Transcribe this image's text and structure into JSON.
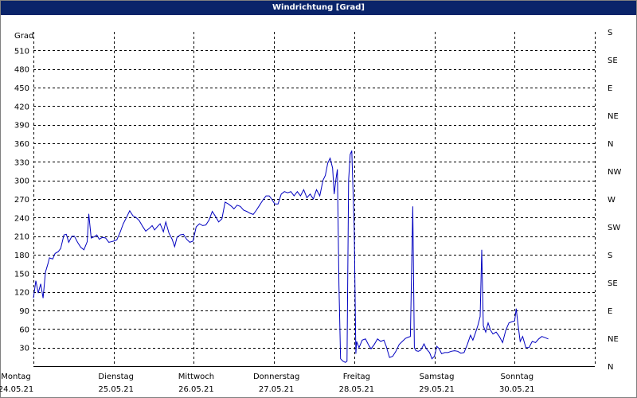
{
  "window": {
    "title": "Windrichtung [Grad]"
  },
  "chart_data": {
    "type": "line",
    "title": "Windrichtung [Grad]",
    "ylabel": "Grad",
    "ylim": [
      0,
      540
    ],
    "yticks": [
      30,
      60,
      90,
      120,
      150,
      180,
      210,
      240,
      270,
      300,
      330,
      360,
      390,
      420,
      450,
      480,
      510
    ],
    "ytick_labels": [
      "30",
      "60",
      "90",
      "120",
      "150",
      "180",
      "210",
      "240",
      "270",
      "300",
      "330",
      "360",
      "390",
      "420",
      "450",
      "480",
      "510"
    ],
    "right_axis_labels": [
      {
        "value": 0,
        "label": "N"
      },
      {
        "value": 45,
        "label": "NE"
      },
      {
        "value": 90,
        "label": "E"
      },
      {
        "value": 135,
        "label": "SE"
      },
      {
        "value": 180,
        "label": "S"
      },
      {
        "value": 225,
        "label": "SW"
      },
      {
        "value": 270,
        "label": "W"
      },
      {
        "value": 315,
        "label": "NW"
      },
      {
        "value": 360,
        "label": "N"
      },
      {
        "value": 405,
        "label": "NE"
      },
      {
        "value": 450,
        "label": "E"
      },
      {
        "value": 495,
        "label": "SE"
      },
      {
        "value": 540,
        "label": "S"
      }
    ],
    "xlim": [
      0,
      7
    ],
    "x_unit": "days since Montag 24.05.21 00:00",
    "x_labels": [
      {
        "day": "Montag",
        "date": "24.05.21"
      },
      {
        "day": "Dienstag",
        "date": "25.05.21"
      },
      {
        "day": "Mittwoch",
        "date": "26.05.21"
      },
      {
        "day": "Donnerstag",
        "date": "27.05.21"
      },
      {
        "day": "Freitag",
        "date": "28.05.21"
      },
      {
        "day": "Samstag",
        "date": "29.05.21"
      },
      {
        "day": "Sonntag",
        "date": "30.05.21"
      }
    ],
    "grid": true,
    "series": [
      {
        "color": "#0000c0",
        "points": [
          [
            0.0,
            110
          ],
          [
            0.03,
            138
          ],
          [
            0.06,
            118
          ],
          [
            0.09,
            133
          ],
          [
            0.12,
            110
          ],
          [
            0.15,
            152
          ],
          [
            0.18,
            165
          ],
          [
            0.2,
            175
          ],
          [
            0.24,
            173
          ],
          [
            0.27,
            182
          ],
          [
            0.31,
            185
          ],
          [
            0.34,
            190
          ],
          [
            0.38,
            212
          ],
          [
            0.41,
            213
          ],
          [
            0.44,
            200
          ],
          [
            0.48,
            210
          ],
          [
            0.51,
            210
          ],
          [
            0.55,
            200
          ],
          [
            0.59,
            192
          ],
          [
            0.63,
            188
          ],
          [
            0.67,
            201
          ],
          [
            0.69,
            246
          ],
          [
            0.72,
            207
          ],
          [
            0.76,
            209
          ],
          [
            0.79,
            212
          ],
          [
            0.82,
            205
          ],
          [
            0.86,
            208
          ],
          [
            0.9,
            207
          ],
          [
            0.94,
            200
          ],
          [
            0.97,
            201
          ],
          [
            1.0,
            202
          ],
          [
            1.04,
            204
          ],
          [
            1.08,
            216
          ],
          [
            1.12,
            230
          ],
          [
            1.16,
            240
          ],
          [
            1.2,
            251
          ],
          [
            1.24,
            243
          ],
          [
            1.28,
            240
          ],
          [
            1.32,
            235
          ],
          [
            1.36,
            226
          ],
          [
            1.4,
            218
          ],
          [
            1.44,
            222
          ],
          [
            1.48,
            227
          ],
          [
            1.51,
            220
          ],
          [
            1.55,
            226
          ],
          [
            1.58,
            230
          ],
          [
            1.62,
            217
          ],
          [
            1.65,
            233
          ],
          [
            1.69,
            215
          ],
          [
            1.73,
            205
          ],
          [
            1.76,
            193
          ],
          [
            1.79,
            208
          ],
          [
            1.83,
            212
          ],
          [
            1.87,
            213
          ],
          [
            1.91,
            205
          ],
          [
            1.95,
            200
          ],
          [
            1.99,
            202
          ],
          [
            2.03,
            225
          ],
          [
            2.07,
            230
          ],
          [
            2.11,
            227
          ],
          [
            2.15,
            228
          ],
          [
            2.19,
            236
          ],
          [
            2.23,
            250
          ],
          [
            2.27,
            242
          ],
          [
            2.31,
            233
          ],
          [
            2.35,
            238
          ],
          [
            2.39,
            265
          ],
          [
            2.43,
            262
          ],
          [
            2.47,
            258
          ],
          [
            2.5,
            254
          ],
          [
            2.54,
            260
          ],
          [
            2.58,
            258
          ],
          [
            2.62,
            252
          ],
          [
            2.66,
            250
          ],
          [
            2.7,
            247
          ],
          [
            2.74,
            245
          ],
          [
            2.78,
            252
          ],
          [
            2.82,
            260
          ],
          [
            2.86,
            268
          ],
          [
            2.9,
            275
          ],
          [
            2.94,
            275
          ],
          [
            2.97,
            270
          ],
          [
            3.01,
            262
          ],
          [
            3.05,
            262
          ],
          [
            3.09,
            278
          ],
          [
            3.13,
            282
          ],
          [
            3.17,
            280
          ],
          [
            3.21,
            282
          ],
          [
            3.25,
            275
          ],
          [
            3.29,
            282
          ],
          [
            3.33,
            275
          ],
          [
            3.37,
            285
          ],
          [
            3.41,
            272
          ],
          [
            3.45,
            278
          ],
          [
            3.49,
            270
          ],
          [
            3.53,
            285
          ],
          [
            3.57,
            275
          ],
          [
            3.61,
            300
          ],
          [
            3.64,
            308
          ],
          [
            3.67,
            328
          ],
          [
            3.7,
            336
          ],
          [
            3.73,
            320
          ],
          [
            3.75,
            278
          ],
          [
            3.77,
            300
          ],
          [
            3.79,
            318
          ],
          [
            3.81,
            130
          ],
          [
            3.83,
            12
          ],
          [
            3.86,
            8
          ],
          [
            3.89,
            6
          ],
          [
            3.91,
            8
          ],
          [
            3.93,
            300
          ],
          [
            3.95,
            342
          ],
          [
            3.97,
            348
          ],
          [
            4.0,
            220
          ],
          [
            4.02,
            20
          ],
          [
            4.03,
            40
          ],
          [
            4.06,
            30
          ],
          [
            4.1,
            42
          ],
          [
            4.14,
            44
          ],
          [
            4.18,
            34
          ],
          [
            4.21,
            28
          ],
          [
            4.25,
            35
          ],
          [
            4.29,
            44
          ],
          [
            4.33,
            40
          ],
          [
            4.37,
            42
          ],
          [
            4.4,
            32
          ],
          [
            4.44,
            14
          ],
          [
            4.48,
            16
          ],
          [
            4.52,
            24
          ],
          [
            4.56,
            35
          ],
          [
            4.6,
            40
          ],
          [
            4.64,
            45
          ],
          [
            4.68,
            47
          ],
          [
            4.7,
            48
          ],
          [
            4.73,
            258
          ],
          [
            4.75,
            30
          ],
          [
            4.77,
            25
          ],
          [
            4.8,
            24
          ],
          [
            4.83,
            26
          ],
          [
            4.87,
            36
          ],
          [
            4.9,
            28
          ],
          [
            4.94,
            22
          ],
          [
            4.97,
            12
          ],
          [
            5.0,
            16
          ],
          [
            5.03,
            32
          ],
          [
            5.06,
            28
          ],
          [
            5.09,
            20
          ],
          [
            5.13,
            22
          ],
          [
            5.17,
            22
          ],
          [
            5.21,
            24
          ],
          [
            5.25,
            25
          ],
          [
            5.29,
            24
          ],
          [
            5.33,
            21
          ],
          [
            5.37,
            22
          ],
          [
            5.41,
            35
          ],
          [
            5.45,
            50
          ],
          [
            5.48,
            42
          ],
          [
            5.51,
            53
          ],
          [
            5.54,
            65
          ],
          [
            5.57,
            80
          ],
          [
            5.59,
            188
          ],
          [
            5.61,
            65
          ],
          [
            5.64,
            55
          ],
          [
            5.67,
            70
          ],
          [
            5.7,
            58
          ],
          [
            5.73,
            52
          ],
          [
            5.77,
            55
          ],
          [
            5.81,
            48
          ],
          [
            5.85,
            38
          ],
          [
            5.89,
            58
          ],
          [
            5.93,
            70
          ],
          [
            5.97,
            72
          ],
          [
            6.0,
            73
          ],
          [
            6.02,
            93
          ],
          [
            6.04,
            70
          ],
          [
            6.07,
            40
          ],
          [
            6.1,
            48
          ],
          [
            6.14,
            30
          ],
          [
            6.18,
            30
          ],
          [
            6.22,
            40
          ],
          [
            6.26,
            38
          ],
          [
            6.3,
            44
          ],
          [
            6.34,
            48
          ],
          [
            6.38,
            46
          ],
          [
            6.42,
            44
          ]
        ]
      }
    ]
  }
}
